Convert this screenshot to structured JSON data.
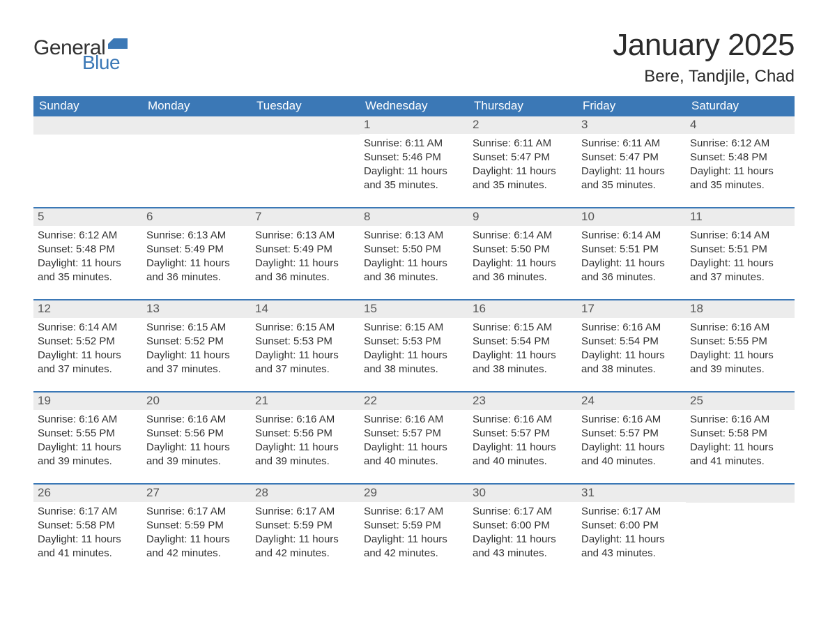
{
  "brand": {
    "general": "General",
    "blue": "Blue",
    "flag_color": "#3b78b6"
  },
  "title": "January 2025",
  "location": "Bere, Tandjile, Chad",
  "colors": {
    "header_bg": "#3b78b6",
    "header_text": "#ffffff",
    "daynum_bg": "#ececec",
    "daynum_text": "#555555",
    "body_text": "#333333",
    "row_divider": "#3b78b6",
    "page_bg": "#ffffff"
  },
  "typography": {
    "title_fontsize": 44,
    "location_fontsize": 24,
    "weekday_fontsize": 17,
    "daynum_fontsize": 17,
    "body_fontsize": 15
  },
  "weekdays": [
    "Sunday",
    "Monday",
    "Tuesday",
    "Wednesday",
    "Thursday",
    "Friday",
    "Saturday"
  ],
  "leading_blanks": 3,
  "days": [
    {
      "n": 1,
      "sunrise": "6:11 AM",
      "sunset": "5:46 PM",
      "dl_h": 11,
      "dl_m": 35
    },
    {
      "n": 2,
      "sunrise": "6:11 AM",
      "sunset": "5:47 PM",
      "dl_h": 11,
      "dl_m": 35
    },
    {
      "n": 3,
      "sunrise": "6:11 AM",
      "sunset": "5:47 PM",
      "dl_h": 11,
      "dl_m": 35
    },
    {
      "n": 4,
      "sunrise": "6:12 AM",
      "sunset": "5:48 PM",
      "dl_h": 11,
      "dl_m": 35
    },
    {
      "n": 5,
      "sunrise": "6:12 AM",
      "sunset": "5:48 PM",
      "dl_h": 11,
      "dl_m": 35
    },
    {
      "n": 6,
      "sunrise": "6:13 AM",
      "sunset": "5:49 PM",
      "dl_h": 11,
      "dl_m": 36
    },
    {
      "n": 7,
      "sunrise": "6:13 AM",
      "sunset": "5:49 PM",
      "dl_h": 11,
      "dl_m": 36
    },
    {
      "n": 8,
      "sunrise": "6:13 AM",
      "sunset": "5:50 PM",
      "dl_h": 11,
      "dl_m": 36
    },
    {
      "n": 9,
      "sunrise": "6:14 AM",
      "sunset": "5:50 PM",
      "dl_h": 11,
      "dl_m": 36
    },
    {
      "n": 10,
      "sunrise": "6:14 AM",
      "sunset": "5:51 PM",
      "dl_h": 11,
      "dl_m": 36
    },
    {
      "n": 11,
      "sunrise": "6:14 AM",
      "sunset": "5:51 PM",
      "dl_h": 11,
      "dl_m": 37
    },
    {
      "n": 12,
      "sunrise": "6:14 AM",
      "sunset": "5:52 PM",
      "dl_h": 11,
      "dl_m": 37
    },
    {
      "n": 13,
      "sunrise": "6:15 AM",
      "sunset": "5:52 PM",
      "dl_h": 11,
      "dl_m": 37
    },
    {
      "n": 14,
      "sunrise": "6:15 AM",
      "sunset": "5:53 PM",
      "dl_h": 11,
      "dl_m": 37
    },
    {
      "n": 15,
      "sunrise": "6:15 AM",
      "sunset": "5:53 PM",
      "dl_h": 11,
      "dl_m": 38
    },
    {
      "n": 16,
      "sunrise": "6:15 AM",
      "sunset": "5:54 PM",
      "dl_h": 11,
      "dl_m": 38
    },
    {
      "n": 17,
      "sunrise": "6:16 AM",
      "sunset": "5:54 PM",
      "dl_h": 11,
      "dl_m": 38
    },
    {
      "n": 18,
      "sunrise": "6:16 AM",
      "sunset": "5:55 PM",
      "dl_h": 11,
      "dl_m": 39
    },
    {
      "n": 19,
      "sunrise": "6:16 AM",
      "sunset": "5:55 PM",
      "dl_h": 11,
      "dl_m": 39
    },
    {
      "n": 20,
      "sunrise": "6:16 AM",
      "sunset": "5:56 PM",
      "dl_h": 11,
      "dl_m": 39
    },
    {
      "n": 21,
      "sunrise": "6:16 AM",
      "sunset": "5:56 PM",
      "dl_h": 11,
      "dl_m": 39
    },
    {
      "n": 22,
      "sunrise": "6:16 AM",
      "sunset": "5:57 PM",
      "dl_h": 11,
      "dl_m": 40
    },
    {
      "n": 23,
      "sunrise": "6:16 AM",
      "sunset": "5:57 PM",
      "dl_h": 11,
      "dl_m": 40
    },
    {
      "n": 24,
      "sunrise": "6:16 AM",
      "sunset": "5:57 PM",
      "dl_h": 11,
      "dl_m": 40
    },
    {
      "n": 25,
      "sunrise": "6:16 AM",
      "sunset": "5:58 PM",
      "dl_h": 11,
      "dl_m": 41
    },
    {
      "n": 26,
      "sunrise": "6:17 AM",
      "sunset": "5:58 PM",
      "dl_h": 11,
      "dl_m": 41
    },
    {
      "n": 27,
      "sunrise": "6:17 AM",
      "sunset": "5:59 PM",
      "dl_h": 11,
      "dl_m": 42
    },
    {
      "n": 28,
      "sunrise": "6:17 AM",
      "sunset": "5:59 PM",
      "dl_h": 11,
      "dl_m": 42
    },
    {
      "n": 29,
      "sunrise": "6:17 AM",
      "sunset": "5:59 PM",
      "dl_h": 11,
      "dl_m": 42
    },
    {
      "n": 30,
      "sunrise": "6:17 AM",
      "sunset": "6:00 PM",
      "dl_h": 11,
      "dl_m": 43
    },
    {
      "n": 31,
      "sunrise": "6:17 AM",
      "sunset": "6:00 PM",
      "dl_h": 11,
      "dl_m": 43
    }
  ],
  "labels": {
    "sunrise": "Sunrise: ",
    "sunset": "Sunset: ",
    "daylight_prefix": "Daylight: ",
    "hours_word": " hours",
    "and_word": "and ",
    "minutes_word": " minutes."
  }
}
